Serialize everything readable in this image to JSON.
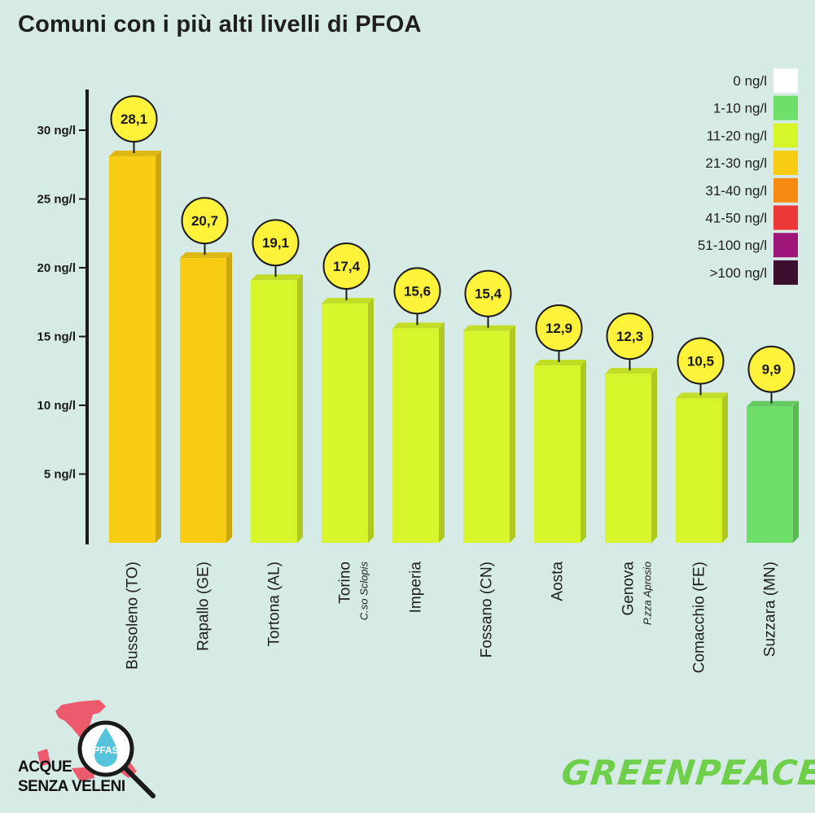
{
  "title": "Comuni con i più alti livelli di PFOA",
  "chart_data": {
    "type": "bar",
    "title": "Comuni con i più alti livelli di PFOA",
    "categories": [
      {
        "name": "Bussoleno (TO)",
        "sub": ""
      },
      {
        "name": "Rapallo (GE)",
        "sub": ""
      },
      {
        "name": "Tortona (AL)",
        "sub": ""
      },
      {
        "name": "Torino",
        "sub": "C.so Sclopis"
      },
      {
        "name": "Imperia",
        "sub": ""
      },
      {
        "name": "Fossano (CN)",
        "sub": ""
      },
      {
        "name": "Aosta",
        "sub": ""
      },
      {
        "name": "Genova",
        "sub": "P.zza Aprosio"
      },
      {
        "name": "Comacchio (FE)",
        "sub": ""
      },
      {
        "name": "Suzzara (MN)",
        "sub": ""
      }
    ],
    "values": [
      28.1,
      20.7,
      19.1,
      17.4,
      15.6,
      15.4,
      12.9,
      12.3,
      10.5,
      9.9
    ],
    "value_labels": [
      "28,1",
      "20,7",
      "19,1",
      "17,4",
      "15,6",
      "15,4",
      "12,9",
      "12,3",
      "10,5",
      "9,9"
    ],
    "yticks": [
      5,
      10,
      15,
      20,
      25,
      30
    ],
    "ytick_labels": [
      "5 ng/l",
      "10 ng/l",
      "15 ng/l",
      "20 ng/l",
      "25 ng/l",
      "30 ng/l"
    ],
    "ylim": [
      0,
      30
    ],
    "legend_placement": "top-right",
    "legend": [
      {
        "label": "0 ng/l",
        "color": "#ffffff",
        "min": 0,
        "max": 0
      },
      {
        "label": "1-10 ng/l",
        "color": "#6ee06a",
        "min": 1,
        "max": 10
      },
      {
        "label": "11-20 ng/l",
        "color": "#d6f52a",
        "min": 11,
        "max": 20
      },
      {
        "label": "21-30 ng/l",
        "color": "#f7cc12",
        "min": 21,
        "max": 30
      },
      {
        "label": "31-40 ng/l",
        "color": "#f78a10",
        "min": 31,
        "max": 40
      },
      {
        "label": "41-50 ng/l",
        "color": "#ee3838",
        "min": 41,
        "max": 50
      },
      {
        "label": "51-100 ng/l",
        "color": "#a0157a",
        "min": 51,
        "max": 100
      },
      {
        "label": ">100 ng/l",
        "color": "#3e0e30",
        "min": 101,
        "max": 100000
      }
    ],
    "colors": {
      "bubble": "#fff23a",
      "axis": "#1a1a1a"
    }
  },
  "logo": {
    "line1": "ACQUE",
    "line2": "SENZA VELENI",
    "badge": "PFAS"
  },
  "brand": "GREENPEACE"
}
